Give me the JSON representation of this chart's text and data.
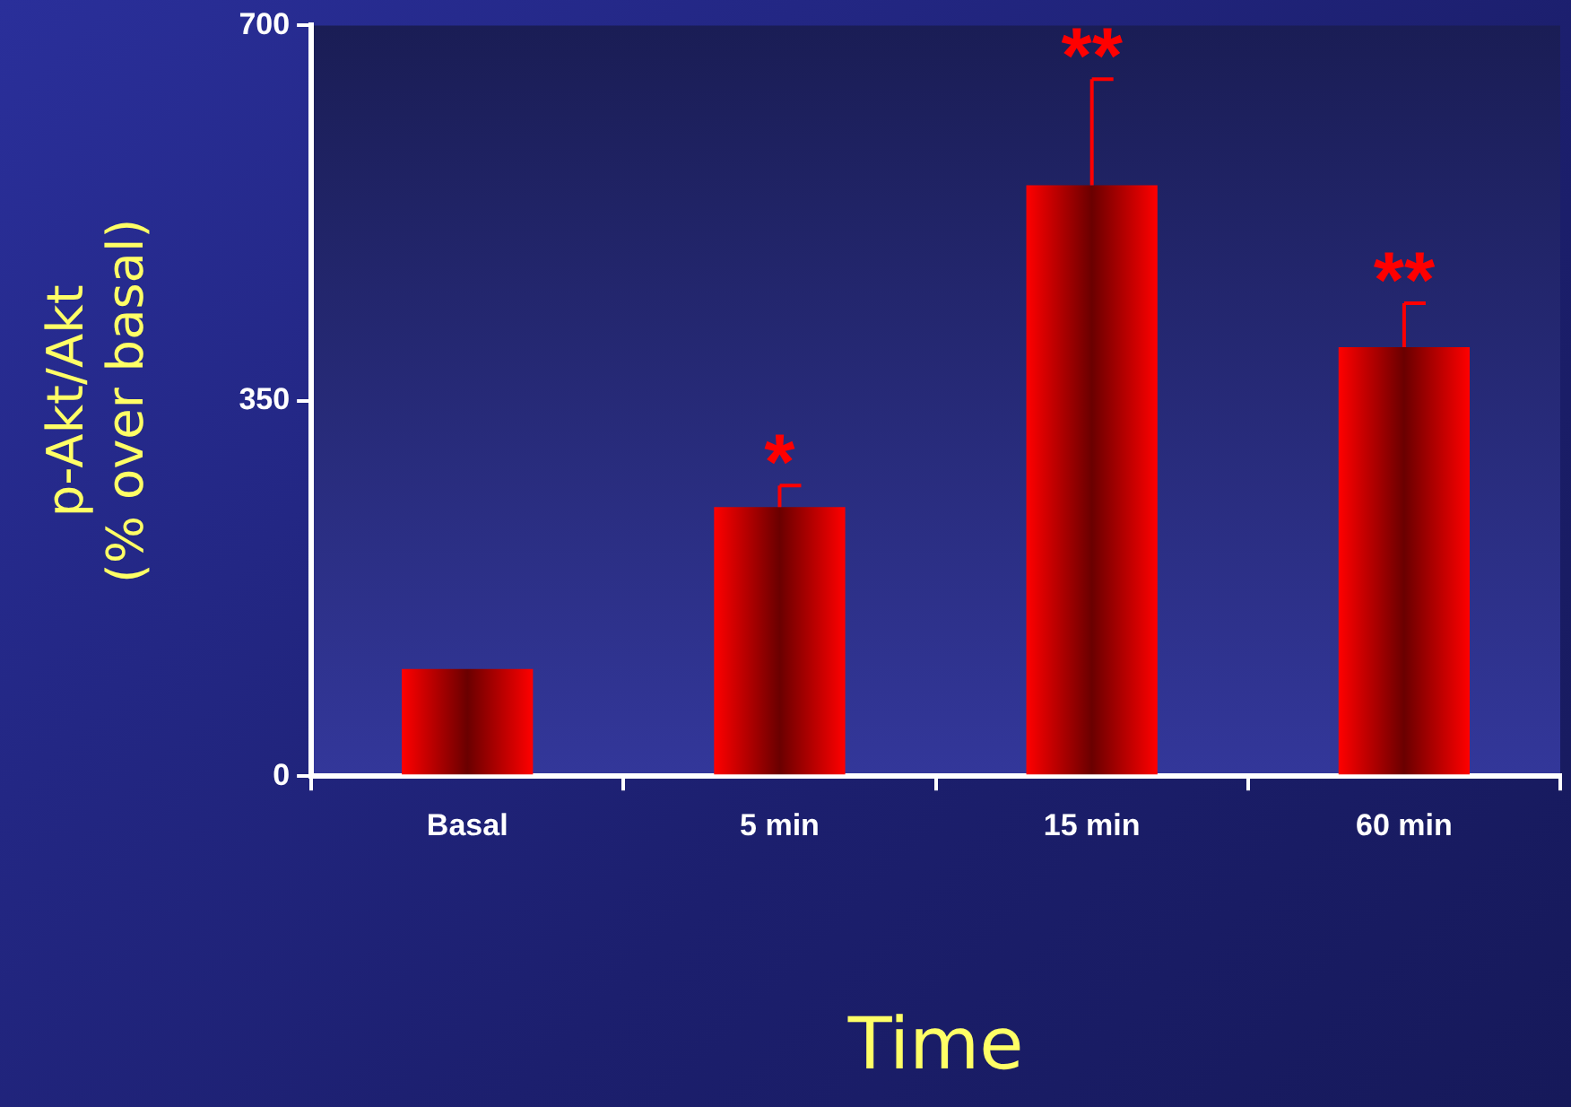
{
  "chart_data": {
    "type": "bar",
    "xlabel": "Time",
    "ylabel": "p-Akt/Akt\n(% over basal)",
    "categories": [
      "Basal",
      "5 min",
      "15 min",
      "60 min"
    ],
    "values": [
      100,
      251,
      551,
      400
    ],
    "errors": [
      null,
      [
        251,
        271
      ],
      [
        551,
        650
      ],
      [
        400,
        441
      ]
    ],
    "color": "#ff0000",
    "ylim": [
      0,
      700
    ],
    "yticks": [
      0,
      350,
      700
    ],
    "grid": false,
    "legend": false,
    "annotations": [
      {
        "text": "*",
        "x": "5 min",
        "y": 271
      },
      {
        "text": "**",
        "x": "15 min",
        "y": 650
      },
      {
        "text": "**",
        "x": "60 min",
        "y": 441
      }
    ]
  }
}
